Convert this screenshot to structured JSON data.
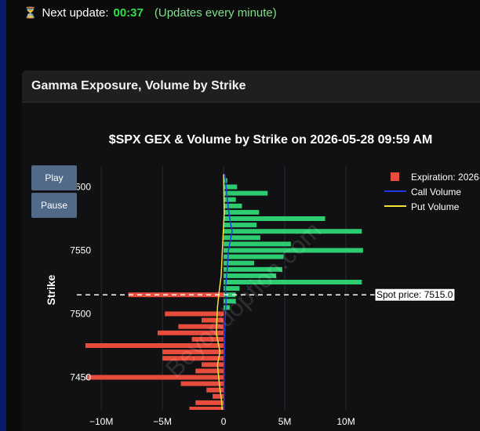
{
  "topbar": {
    "icon": "hourglass-icon",
    "label": "Next update:",
    "countdown": "00:37",
    "note": "(Updates every minute)"
  },
  "card": {
    "title": "Gamma Exposure, Volume by Strike"
  },
  "controls": {
    "play_label": "Play",
    "pause_label": "Pause"
  },
  "chart_data": {
    "type": "bar",
    "orientation": "horizontal",
    "title": "$SPX GEX & Volume by Strike on 2026-05-28 09:59 AM",
    "ylabel": "Strike",
    "xlabel": "",
    "xlim": [
      -12000000,
      12500000
    ],
    "ylim": [
      7430,
      7560
    ],
    "xticks": [
      {
        "value": -10000000,
        "label": "−10M"
      },
      {
        "value": -5000000,
        "label": "−5M"
      },
      {
        "value": 0,
        "label": "0"
      },
      {
        "value": 5000000,
        "label": "5M"
      },
      {
        "value": 10000000,
        "label": "10M"
      }
    ],
    "yticks": [
      {
        "value": 7450,
        "label": "7450"
      },
      {
        "value": 7500,
        "label": "7500"
      },
      {
        "value": 7550,
        "label": "7550"
      },
      {
        "value": 7600,
        "label": "7600"
      }
    ],
    "grid": true,
    "legend": {
      "placement": "top-right",
      "entries": [
        "Expiration: 2026-",
        "Call Volume",
        "Put Volume"
      ]
    },
    "colors": {
      "positive_gex": "#2ecc71",
      "negative_gex": "#e74c3c",
      "call_volume": "#1f3be0",
      "put_volume": "#f4e13a"
    },
    "spot": {
      "value": 7515,
      "label": "Spot price: 7515.0"
    },
    "watermark": "Beyondoption.com",
    "gex": [
      {
        "strike": 7605,
        "value": 300000
      },
      {
        "strike": 7600,
        "value": 1100000
      },
      {
        "strike": 7595,
        "value": 3600000
      },
      {
        "strike": 7590,
        "value": 1000000
      },
      {
        "strike": 7585,
        "value": 1500000
      },
      {
        "strike": 7580,
        "value": 2900000
      },
      {
        "strike": 7575,
        "value": 8300000
      },
      {
        "strike": 7570,
        "value": 2700000
      },
      {
        "strike": 7565,
        "value": 11300000
      },
      {
        "strike": 7560,
        "value": 3000000
      },
      {
        "strike": 7555,
        "value": 5500000
      },
      {
        "strike": 7550,
        "value": 11400000
      },
      {
        "strike": 7545,
        "value": 4900000
      },
      {
        "strike": 7540,
        "value": 2500000
      },
      {
        "strike": 7535,
        "value": 4800000
      },
      {
        "strike": 7530,
        "value": 4300000
      },
      {
        "strike": 7525,
        "value": 11300000
      },
      {
        "strike": 7520,
        "value": 1300000
      },
      {
        "strike": 7515,
        "value": 1000000
      },
      {
        "strike": 7515,
        "value": -7800000
      },
      {
        "strike": 7510,
        "value": 1000000
      },
      {
        "strike": 7505,
        "value": 500000
      },
      {
        "strike": 7500,
        "value": -4800000
      },
      {
        "strike": 7495,
        "value": -1800000
      },
      {
        "strike": 7490,
        "value": -3700000
      },
      {
        "strike": 7485,
        "value": -5400000
      },
      {
        "strike": 7480,
        "value": -2600000
      },
      {
        "strike": 7475,
        "value": -11300000
      },
      {
        "strike": 7470,
        "value": -5000000
      },
      {
        "strike": 7465,
        "value": -5000000
      },
      {
        "strike": 7460,
        "value": -1800000
      },
      {
        "strike": 7455,
        "value": -2300000
      },
      {
        "strike": 7450,
        "value": -11300000
      },
      {
        "strike": 7445,
        "value": -3500000
      },
      {
        "strike": 7440,
        "value": -1400000
      },
      {
        "strike": 7435,
        "value": -900000
      },
      {
        "strike": 7430,
        "value": -2300000
      },
      {
        "strike": 7425,
        "value": -2800000
      },
      {
        "strike": 7420,
        "value": -800000
      }
    ],
    "call_volume": [
      {
        "strike": 7610,
        "value": 100000
      },
      {
        "strike": 7590,
        "value": 300000
      },
      {
        "strike": 7575,
        "value": 500000
      },
      {
        "strike": 7565,
        "value": 700000
      },
      {
        "strike": 7550,
        "value": 400000
      },
      {
        "strike": 7535,
        "value": 300000
      },
      {
        "strike": 7520,
        "value": 150000
      },
      {
        "strike": 7510,
        "value": 200000
      },
      {
        "strike": 7490,
        "value": 100000
      },
      {
        "strike": 7460,
        "value": 50000
      },
      {
        "strike": 7430,
        "value": 30000
      },
      {
        "strike": 7418,
        "value": 20000
      }
    ],
    "put_volume": [
      {
        "strike": 7610,
        "value": 0
      },
      {
        "strike": 7580,
        "value": 50000
      },
      {
        "strike": 7550,
        "value": -100000
      },
      {
        "strike": 7530,
        "value": -200000
      },
      {
        "strike": 7515,
        "value": -400000
      },
      {
        "strike": 7505,
        "value": -500000
      },
      {
        "strike": 7485,
        "value": -600000
      },
      {
        "strike": 7470,
        "value": -300000
      },
      {
        "strike": 7460,
        "value": -500000
      },
      {
        "strike": 7445,
        "value": -350000
      },
      {
        "strike": 7430,
        "value": -150000
      },
      {
        "strike": 7418,
        "value": -100000
      }
    ]
  }
}
